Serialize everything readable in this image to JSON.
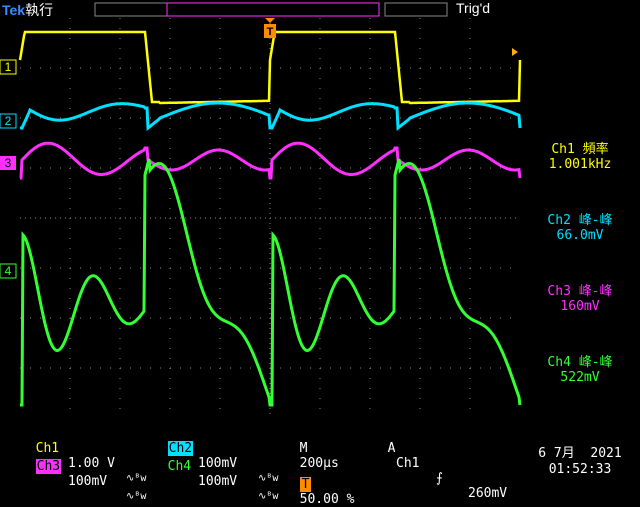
{
  "brand": "Tek",
  "run_state": "執行",
  "trigger_state": "Trig'd",
  "trigger_marker": "T",
  "channel_markers": [
    "1",
    "2",
    "3",
    "4"
  ],
  "colors": {
    "ch1": "#ffff00",
    "ch2": "#00e0ff",
    "ch3": "#ff30ff",
    "ch4": "#33ff33",
    "grid": "#8a8a8a",
    "trigger": "#ff8c00"
  },
  "measurements": [
    {
      "label": "Ch1 頻率",
      "value": "1.001kHz"
    },
    {
      "label": "Ch2 峰-峰",
      "value": "66.0mV"
    },
    {
      "label": "Ch3 峰-峰",
      "value": "160mV"
    },
    {
      "label": "Ch4 峰-峰",
      "value": "522mV"
    }
  ],
  "status": {
    "ch1_name": "Ch1",
    "ch1_scale": "1.00 V",
    "ch2_name": "Ch2",
    "ch2_scale": "100mV",
    "ch3_name": "Ch3",
    "ch3_scale": "100mV",
    "ch4_name": "Ch4",
    "ch4_scale": "100mV",
    "bw_symbol": "∿ᴮw",
    "timebase_label": "M",
    "timebase": "200µs",
    "trigger_label": "A",
    "trigger_source": "Ch1",
    "trigger_slope": "⨍",
    "trigger_level": "260mV",
    "trigger_position": "50.00 %",
    "date": "6 7月  2021",
    "time": "01:52:33"
  }
}
